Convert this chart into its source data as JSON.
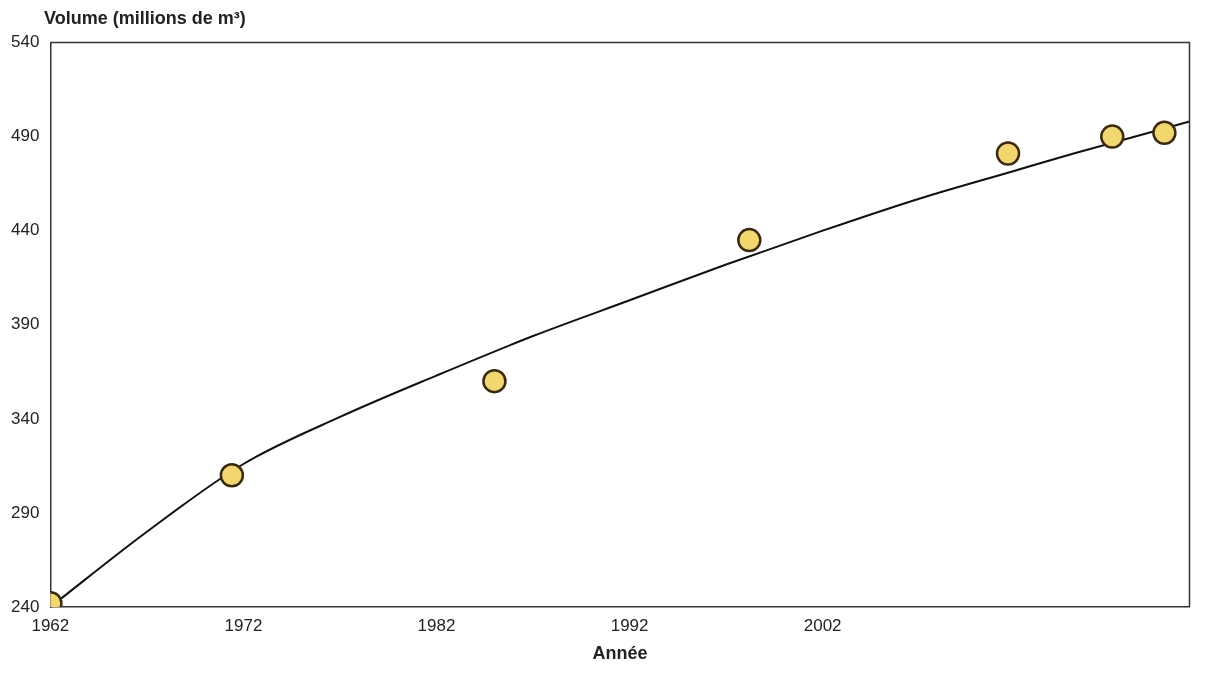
{
  "chart_data": {
    "type": "scatter",
    "ylabel": "Volume (millions de m³)",
    "xlabel": "Année",
    "xlim": [
      1962,
      2021
    ],
    "xticks": [
      1962,
      1972,
      1982,
      1992,
      2002
    ],
    "ylim": [
      240,
      540
    ],
    "yticks": [
      240,
      290,
      340,
      390,
      440,
      490,
      540
    ],
    "grid": false,
    "legend": false,
    "marker": "circle",
    "series": [
      {
        "color": "#f2d66e",
        "x": [
          1962,
          1971.4,
          1985,
          1998.2,
          2011.6,
          2017,
          2019.7
        ],
        "values": [
          242,
          310,
          360,
          435,
          481,
          490,
          492
        ]
      },
      {
        "type": "line",
        "color": "#111111",
        "marker": "none",
        "x": [
          1962,
          1967,
          1972,
          1977,
          1982,
          1987,
          1992,
          1997,
          2002,
          2007,
          2012,
          2015,
          2021
        ],
        "values": [
          240,
          280,
          316,
          341,
          363,
          384,
          403,
          422,
          440,
          457,
          472,
          481,
          498
        ]
      }
    ]
  }
}
